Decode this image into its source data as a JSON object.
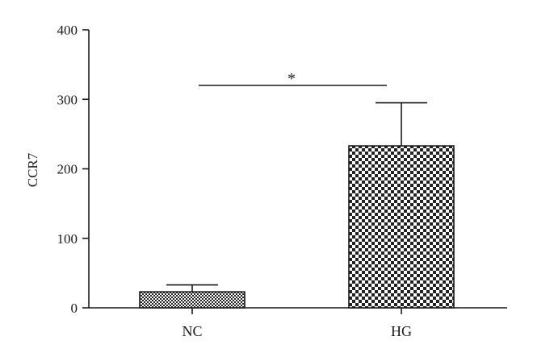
{
  "chart_data": {
    "type": "bar",
    "title": "",
    "xlabel": "",
    "ylabel": "CCR7",
    "categories": [
      "NC",
      "HG"
    ],
    "values": [
      23,
      233
    ],
    "error_upper": [
      33,
      295
    ],
    "ylim": [
      0,
      400
    ],
    "yticks": [
      "0",
      "100",
      "200",
      "300",
      "400"
    ],
    "significance": {
      "label": "*",
      "between": [
        "NC",
        "HG"
      ]
    },
    "fill_patterns": [
      "fine-checker",
      "coarse-checker"
    ],
    "grid": false,
    "legend": "none",
    "colors": {
      "axis": "#1a1a1a",
      "bar_dark": "#222222",
      "bar_light": "#ffffff"
    }
  }
}
